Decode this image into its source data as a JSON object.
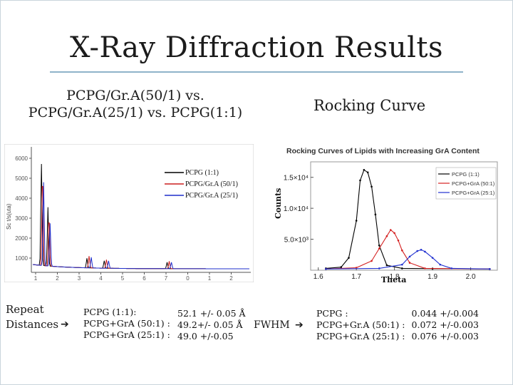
{
  "page": {
    "title": "X-Ray Diffraction Results",
    "subtitle_left_line1": "PCPG/Gr.A(50/1) vs.",
    "subtitle_left_line2": "PCPG/Gr.A(25/1) vs. PCPG(1:1)",
    "subtitle_right": "Rocking Curve"
  },
  "chart_data": [
    {
      "type": "line",
      "legend": [
        "PCPG (1:1)",
        "PCPG/Gr.A (50/1)",
        "PCPG/Gr.A (25/1)"
      ],
      "legend_placement": "top-right",
      "ylabel": "Sc t/s(uta)",
      "y_ticks": [
        "6000",
        "5000",
        "4000",
        "3000",
        "2000",
        "1000"
      ],
      "x_ticks": [
        "1",
        "2",
        "3",
        "4",
        "5",
        "6",
        "7",
        "0",
        "1",
        "2"
      ],
      "series_colors": [
        "#000000",
        "#cc1f1f",
        "#1f2fcc"
      ],
      "grid": false
    },
    {
      "type": "line",
      "title": "Rocking Curves of Lipids with Increasing GrA Content",
      "xlabel": "Theta",
      "ylabel": "Counts",
      "x_ticks": [
        "1.6",
        "1.7",
        "1.8",
        "1.9",
        "2.0"
      ],
      "y_ticks": [
        "1.5×10⁴",
        "1.0×10⁴",
        "5.0×10³"
      ],
      "xlim": [
        1.58,
        2.07
      ],
      "ylim": [
        0,
        17500
      ],
      "legend_placement": "top-right",
      "grid": false,
      "series": [
        {
          "name": "PCPG (1:1)",
          "color": "#000000",
          "x": [
            1.62,
            1.66,
            1.68,
            1.7,
            1.71,
            1.72,
            1.73,
            1.74,
            1.75,
            1.76,
            1.78,
            1.82,
            1.9,
            2.05
          ],
          "y": [
            300,
            500,
            2000,
            8000,
            14500,
            16200,
            15800,
            13500,
            9000,
            4000,
            800,
            300,
            250,
            200
          ]
        },
        {
          "name": "PCPG+GrA (50:1)",
          "color": "#d42020",
          "x": [
            1.62,
            1.7,
            1.74,
            1.76,
            1.78,
            1.79,
            1.8,
            1.81,
            1.82,
            1.84,
            1.88,
            2.05
          ],
          "y": [
            200,
            400,
            1500,
            3500,
            5500,
            6500,
            6000,
            4800,
            3200,
            1200,
            300,
            200
          ]
        },
        {
          "name": "PCPG+GrA (25:1)",
          "color": "#2030d0",
          "x": [
            1.62,
            1.76,
            1.82,
            1.84,
            1.86,
            1.87,
            1.88,
            1.9,
            1.92,
            1.95,
            2.05
          ],
          "y": [
            200,
            300,
            900,
            2200,
            3100,
            3300,
            3000,
            2000,
            900,
            300,
            200
          ]
        }
      ]
    }
  ],
  "repeat": {
    "label_line1": "Repeat",
    "label_line2": "Distances",
    "names": [
      "PCPG (1:1):",
      "PCPG+GrA (50:1) :",
      "PCPG+GrA (25:1) :"
    ],
    "values": [
      "52.1 +/- 0.05 Å",
      "49.2+/- 0.05 Å",
      "49.0 +/-0.05"
    ]
  },
  "fwhm": {
    "label": "FWHM",
    "names": [
      "PCPG :",
      "PCPG+Gr.A (50:1) :",
      "PCPG+Gr.A (25:1) :"
    ],
    "values": [
      "0.044 +/-0.004",
      "0.072 +/-0.003",
      "0.076 +/-0.003"
    ]
  },
  "icons": {
    "arrow": "right-arrow-icon"
  }
}
